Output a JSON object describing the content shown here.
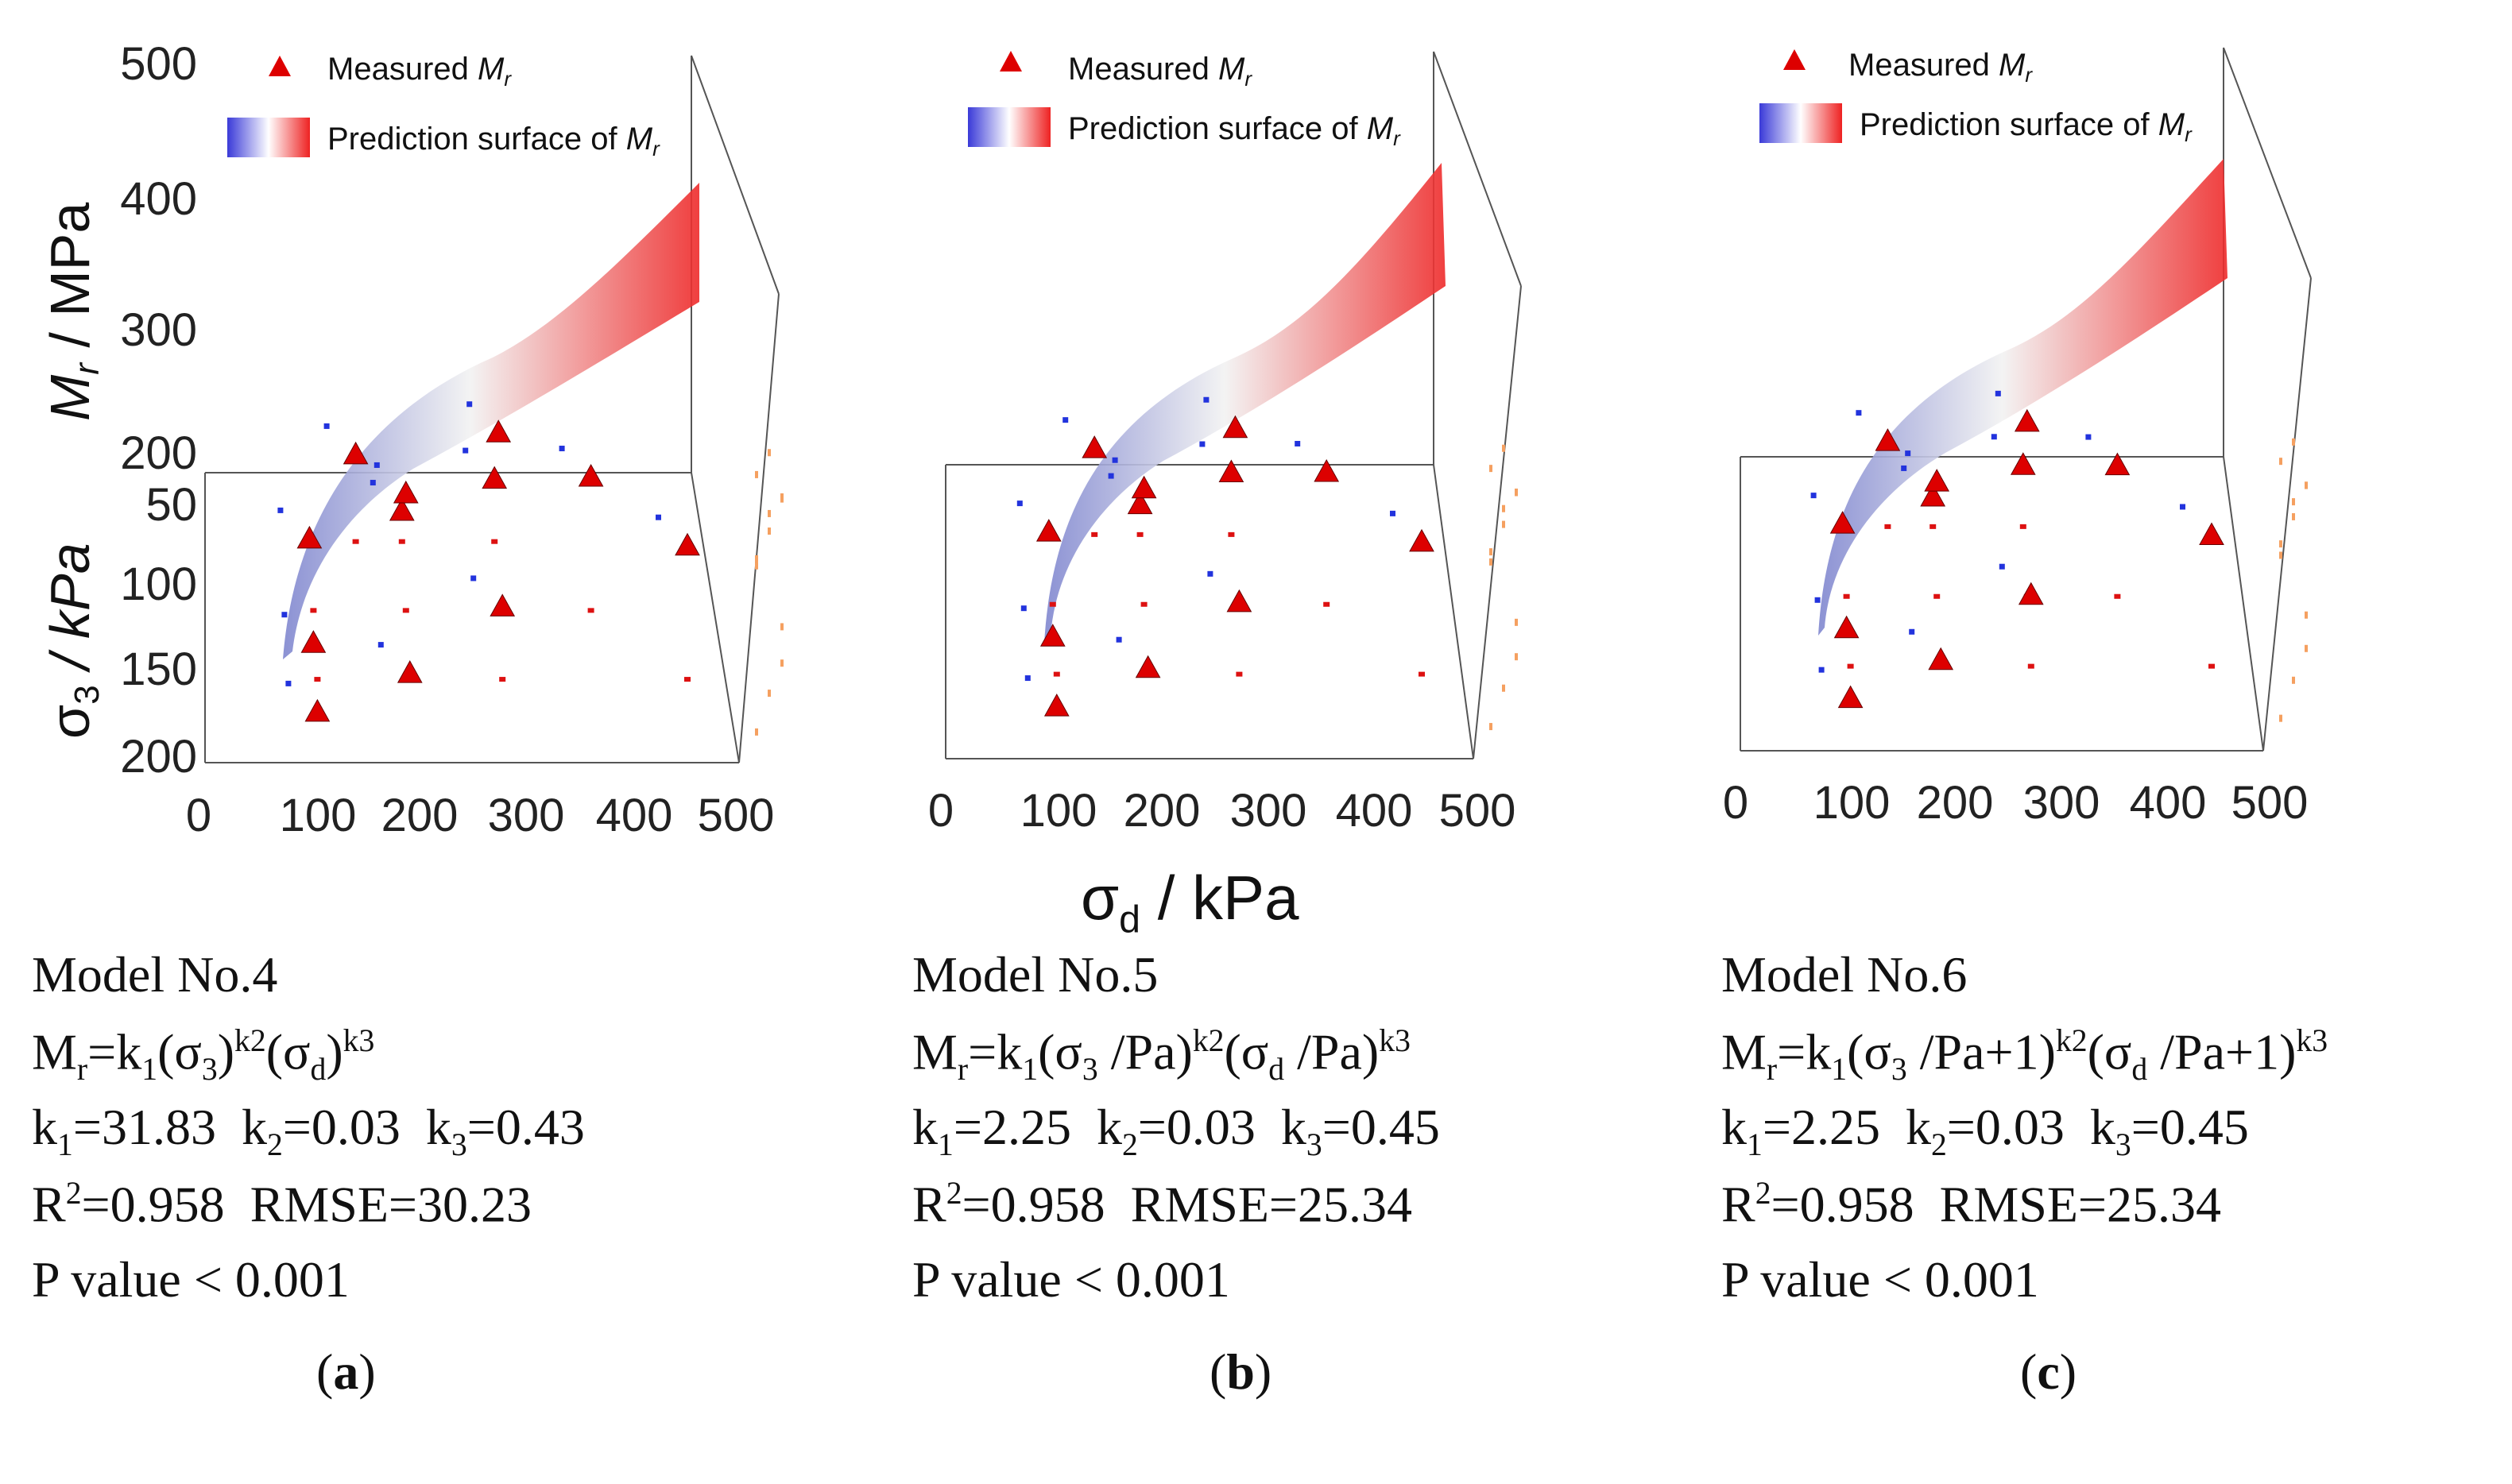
{
  "legend": {
    "measured": "Measured ",
    "measured_var": "M",
    "measured_sub": "r",
    "surface": "Prediction surface of ",
    "surface_var": "M",
    "surface_sub": "r"
  },
  "axis_labels": {
    "z_var": "M",
    "z_sub": "r",
    "z_unit": " / MPa",
    "y_var": "σ",
    "y_sub": "3",
    "y_unit": " / kPa",
    "x_var": "σ",
    "x_sub": "d",
    "x_unit": " / kPa"
  },
  "panels": [
    {
      "label_open": "(",
      "label": "a",
      "label_close": ")",
      "model_no": "Model No.4",
      "eq": {
        "a": "M",
        "a_sub": "r",
        "b": "=k",
        "b_sub": "1",
        "c": "(σ",
        "c_sub": "3",
        "d": ")",
        "d_sup": "k2",
        "e": "(σ",
        "e_sub": "d",
        "f": ")",
        "f_sup": "k3"
      },
      "k1": "31.83",
      "k2": "0.03",
      "k3": "0.43",
      "r2": "0.958",
      "rmse": "30.23",
      "p": "P value  < 0.001"
    },
    {
      "label_open": "(",
      "label": "b",
      "label_close": ")",
      "model_no": "Model No.5",
      "eq": {
        "a": "M",
        "a_sub": "r",
        "b": "=k",
        "b_sub": "1",
        "c": "(σ",
        "c_sub": "3",
        "d": " /Pa)",
        "d_sup": "k2",
        "e": "(σ",
        "e_sub": "d",
        "f": " /Pa)",
        "f_sup": "k3"
      },
      "k1": "2.25",
      "k2": "0.03",
      "k3": "0.45",
      "r2": "0.958",
      "rmse": "25.34",
      "p": "P value  < 0.001"
    },
    {
      "label_open": "(",
      "label": "c",
      "label_close": ")",
      "model_no": "Model No.6",
      "eq": {
        "a": "M",
        "a_sub": "r",
        "b": "=k",
        "b_sub": "1",
        "c": "(σ",
        "c_sub": "3",
        "d": " /Pa+1)",
        "d_sup": "k2",
        "e": "(σ",
        "e_sub": "d",
        "f": " /Pa+1)",
        "f_sup": "k3"
      },
      "k1": "2.25",
      "k2": "0.03",
      "k3": "0.45",
      "r2": "0.958",
      "rmse": "25.34",
      "p": "P value  < 0.001"
    }
  ],
  "colors": {
    "measured": "#dd0000",
    "surface_low": "#7f86cf",
    "surface_mid": "#f2f2f2",
    "surface_high": "#ee2a2a",
    "projection_blue": "#2233dd",
    "projection_red": "#dd1111",
    "projection_orange": "#f5a060"
  },
  "chart_data": [
    {
      "type": "scatter",
      "panel": "a",
      "x_ticks": [
        "0",
        "100",
        "200",
        "300",
        "400",
        "500"
      ],
      "y_ticks": [
        "50",
        "100",
        "150",
        "200"
      ],
      "z_ticks": [
        "200",
        "300",
        "400",
        "500"
      ],
      "xlim": [
        0,
        500
      ],
      "ylim": [
        0,
        200
      ],
      "zlim": [
        180,
        500
      ],
      "measured": [
        {
          "sd": 100,
          "s3": 50,
          "mr": 182
        },
        {
          "sd": 200,
          "s3": 50,
          "mr": 207
        },
        {
          "sd": 300,
          "s3": 50,
          "mr": 236
        },
        {
          "sd": 150,
          "s3": 50,
          "mr": 258
        },
        {
          "sd": 300,
          "s3": 100,
          "mr": 340
        },
        {
          "sd": 400,
          "s3": 100,
          "mr": 300
        },
        {
          "sd": 500,
          "s3": 150,
          "mr": 300
        },
        {
          "sd": 200,
          "s3": 100,
          "mr": 285
        },
        {
          "sd": 100,
          "s3": 100,
          "mr": 150
        },
        {
          "sd": 100,
          "s3": 150,
          "mr": 150
        },
        {
          "sd": 200,
          "s3": 150,
          "mr": 185
        },
        {
          "sd": 300,
          "s3": 150,
          "mr": 245
        }
      ]
    },
    {
      "type": "scatter",
      "panel": "b",
      "x_ticks": [
        "0",
        "100",
        "200",
        "300",
        "400",
        "500"
      ],
      "xlim": [
        0,
        500
      ],
      "ylim": [
        0,
        200
      ],
      "zlim": [
        180,
        500
      ],
      "measured": [
        {
          "sd": 100,
          "s3": 50,
          "mr": 182
        },
        {
          "sd": 200,
          "s3": 50,
          "mr": 207
        },
        {
          "sd": 300,
          "s3": 50,
          "mr": 236
        },
        {
          "sd": 150,
          "s3": 50,
          "mr": 258
        },
        {
          "sd": 300,
          "s3": 100,
          "mr": 340
        },
        {
          "sd": 400,
          "s3": 100,
          "mr": 300
        },
        {
          "sd": 500,
          "s3": 150,
          "mr": 300
        },
        {
          "sd": 200,
          "s3": 100,
          "mr": 285
        },
        {
          "sd": 100,
          "s3": 100,
          "mr": 150
        },
        {
          "sd": 100,
          "s3": 150,
          "mr": 150
        },
        {
          "sd": 200,
          "s3": 150,
          "mr": 185
        },
        {
          "sd": 300,
          "s3": 150,
          "mr": 245
        }
      ]
    },
    {
      "type": "scatter",
      "panel": "c",
      "x_ticks": [
        "0",
        "100",
        "200",
        "300",
        "400",
        "500"
      ],
      "xlim": [
        0,
        500
      ],
      "ylim": [
        0,
        200
      ],
      "zlim": [
        180,
        500
      ],
      "measured": [
        {
          "sd": 100,
          "s3": 50,
          "mr": 182
        },
        {
          "sd": 200,
          "s3": 50,
          "mr": 207
        },
        {
          "sd": 300,
          "s3": 50,
          "mr": 236
        },
        {
          "sd": 150,
          "s3": 50,
          "mr": 258
        },
        {
          "sd": 300,
          "s3": 100,
          "mr": 340
        },
        {
          "sd": 400,
          "s3": 100,
          "mr": 300
        },
        {
          "sd": 500,
          "s3": 150,
          "mr": 300
        },
        {
          "sd": 200,
          "s3": 100,
          "mr": 285
        },
        {
          "sd": 100,
          "s3": 100,
          "mr": 150
        },
        {
          "sd": 100,
          "s3": 150,
          "mr": 150
        },
        {
          "sd": 200,
          "s3": 150,
          "mr": 185
        },
        {
          "sd": 300,
          "s3": 150,
          "mr": 245
        }
      ]
    }
  ]
}
